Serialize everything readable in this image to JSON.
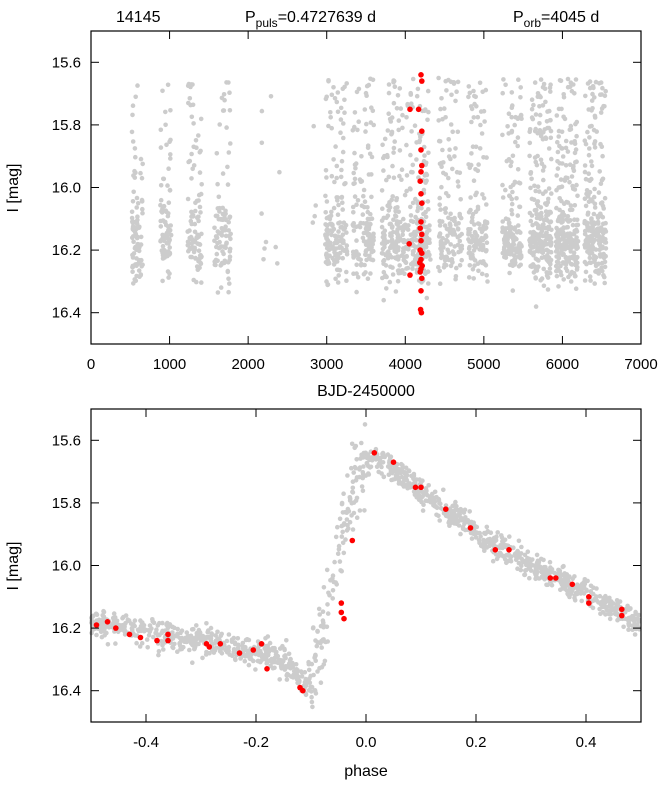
{
  "chart_data": [
    {
      "type": "scatter",
      "title": "",
      "star_id": "14145",
      "annotations": {
        "p_puls_main": "P",
        "p_puls_sub": "puls",
        "p_puls_value": "=0.4727639 d",
        "p_orb_main": "P",
        "p_orb_sub": "orb",
        "p_orb_value": "=4045 d"
      },
      "xlabel": "BJD-2450000",
      "ylabel": "I [mag]",
      "xlim": [
        0,
        7000
      ],
      "ylim": [
        16.5,
        15.5
      ],
      "y_inverted": true,
      "x_ticks": [
        0,
        1000,
        2000,
        3000,
        4000,
        5000,
        6000,
        7000
      ],
      "x_tick_labels": [
        "0",
        "1000",
        "2000",
        "3000",
        "4000",
        "5000",
        "6000",
        "7000"
      ],
      "y_ticks": [
        15.6,
        15.8,
        16.0,
        16.2,
        16.4
      ],
      "y_tick_labels": [
        "15.6",
        "15.8",
        "16.0",
        "16.2",
        "16.4"
      ],
      "grid": false,
      "colors": {
        "background_points": "#cccccc",
        "highlight_points": "#ff0000"
      },
      "series": [
        {
          "role": "all-observations",
          "seasons": [
            {
              "x": [
                520,
                660
              ],
              "n": 90
            },
            {
              "x": [
                880,
                1020
              ],
              "n": 80
            },
            {
              "x": [
                1230,
                1410
              ],
              "n": 100
            },
            {
              "x": [
                1570,
                1780
              ],
              "n": 90
            },
            {
              "x": [
                2170,
                2230
              ],
              "n": 6
            },
            {
              "x": [
                2290,
                2400
              ],
              "n": 4
            },
            {
              "x": [
                2820,
                2880
              ],
              "n": 4
            },
            {
              "x": [
                2980,
                3260
              ],
              "n": 160
            },
            {
              "x": [
                3330,
                3600
              ],
              "n": 140
            },
            {
              "x": [
                3700,
                4040
              ],
              "n": 200
            },
            {
              "x": [
                4060,
                4320
              ],
              "n": 170
            },
            {
              "x": [
                4420,
                4720
              ],
              "n": 140
            },
            {
              "x": [
                4800,
                5050
              ],
              "n": 130
            },
            {
              "x": [
                5230,
                5480
              ],
              "n": 150
            },
            {
              "x": [
                5580,
                5860
              ],
              "n": 240
            },
            {
              "x": [
                5920,
                6200
              ],
              "n": 240
            },
            {
              "x": [
                6280,
                6560
              ],
              "n": 220
            }
          ]
        },
        {
          "role": "highlighted-season",
          "points": [
            {
              "x": 4200,
              "y": 15.64
            },
            {
              "x": 4210,
              "y": 15.66
            },
            {
              "x": 4060,
              "y": 15.75
            },
            {
              "x": 4170,
              "y": 15.75
            },
            {
              "x": 4210,
              "y": 15.82
            },
            {
              "x": 4200,
              "y": 15.88
            },
            {
              "x": 4210,
              "y": 15.93
            },
            {
              "x": 4200,
              "y": 15.95
            },
            {
              "x": 4190,
              "y": 15.98
            },
            {
              "x": 4200,
              "y": 16.02
            },
            {
              "x": 4210,
              "y": 16.05
            },
            {
              "x": 4200,
              "y": 16.11
            },
            {
              "x": 4190,
              "y": 16.13
            },
            {
              "x": 4210,
              "y": 16.15
            },
            {
              "x": 4200,
              "y": 16.17
            },
            {
              "x": 4050,
              "y": 16.18
            },
            {
              "x": 4190,
              "y": 16.2
            },
            {
              "x": 4210,
              "y": 16.21
            },
            {
              "x": 4200,
              "y": 16.23
            },
            {
              "x": 4185,
              "y": 16.24
            },
            {
              "x": 4215,
              "y": 16.25
            },
            {
              "x": 4200,
              "y": 16.26
            },
            {
              "x": 4190,
              "y": 16.27
            },
            {
              "x": 4060,
              "y": 16.28
            },
            {
              "x": 4210,
              "y": 16.29
            },
            {
              "x": 4200,
              "y": 16.33
            },
            {
              "x": 4195,
              "y": 16.39
            },
            {
              "x": 4205,
              "y": 16.4
            }
          ]
        }
      ]
    },
    {
      "type": "scatter",
      "title": "",
      "xlabel": "phase",
      "ylabel": "I [mag]",
      "xlim": [
        -0.5,
        0.5
      ],
      "ylim": [
        16.5,
        15.5
      ],
      "y_inverted": true,
      "x_ticks": [
        -0.4,
        -0.2,
        0.0,
        0.2,
        0.4
      ],
      "x_tick_labels": [
        "-0.4",
        "-0.2",
        "0.0",
        "0.2",
        "0.4"
      ],
      "y_ticks": [
        15.6,
        15.8,
        16.0,
        16.2,
        16.4
      ],
      "y_tick_labels": [
        "15.6",
        "15.8",
        "16.0",
        "16.2",
        "16.4"
      ],
      "grid": false,
      "colors": {
        "background_points": "#cccccc",
        "highlight_points": "#ff0000"
      },
      "series": [
        {
          "role": "all-observations-phased",
          "light_curve": [
            {
              "x": -0.5,
              "y": 16.18
            },
            {
              "x": -0.3,
              "y": 16.24
            },
            {
              "x": -0.15,
              "y": 16.3
            },
            {
              "x": -0.11,
              "y": 16.38
            },
            {
              "x": -0.08,
              "y": 16.24
            },
            {
              "x": -0.05,
              "y": 15.95
            },
            {
              "x": -0.02,
              "y": 15.72
            },
            {
              "x": 0.0,
              "y": 15.66
            },
            {
              "x": 0.02,
              "y": 15.65
            },
            {
              "x": 0.1,
              "y": 15.76
            },
            {
              "x": 0.2,
              "y": 15.9
            },
            {
              "x": 0.3,
              "y": 16.0
            },
            {
              "x": 0.4,
              "y": 16.09
            },
            {
              "x": 0.5,
              "y": 16.19
            }
          ],
          "n": 1400,
          "scatter_mag": 0.035
        },
        {
          "role": "highlighted-season-phased",
          "points": [
            {
              "x": -0.49,
              "y": 16.19
            },
            {
              "x": -0.47,
              "y": 16.18
            },
            {
              "x": -0.455,
              "y": 16.2
            },
            {
              "x": -0.43,
              "y": 16.22
            },
            {
              "x": -0.41,
              "y": 16.23
            },
            {
              "x": -0.38,
              "y": 16.24
            },
            {
              "x": -0.36,
              "y": 16.22
            },
            {
              "x": -0.36,
              "y": 16.24
            },
            {
              "x": -0.29,
              "y": 16.25
            },
            {
              "x": -0.285,
              "y": 16.26
            },
            {
              "x": -0.265,
              "y": 16.25
            },
            {
              "x": -0.23,
              "y": 16.28
            },
            {
              "x": -0.205,
              "y": 16.27
            },
            {
              "x": -0.19,
              "y": 16.25
            },
            {
              "x": -0.18,
              "y": 16.33
            },
            {
              "x": -0.12,
              "y": 16.39
            },
            {
              "x": -0.115,
              "y": 16.4
            },
            {
              "x": -0.045,
              "y": 16.12
            },
            {
              "x": -0.045,
              "y": 16.15
            },
            {
              "x": -0.04,
              "y": 16.17
            },
            {
              "x": -0.025,
              "y": 15.92
            },
            {
              "x": 0.015,
              "y": 15.64
            },
            {
              "x": 0.05,
              "y": 15.67
            },
            {
              "x": 0.09,
              "y": 15.75
            },
            {
              "x": 0.1,
              "y": 15.75
            },
            {
              "x": 0.145,
              "y": 15.82
            },
            {
              "x": 0.19,
              "y": 15.88
            },
            {
              "x": 0.235,
              "y": 15.95
            },
            {
              "x": 0.26,
              "y": 15.95
            },
            {
              "x": 0.335,
              "y": 16.04
            },
            {
              "x": 0.345,
              "y": 16.04
            },
            {
              "x": 0.375,
              "y": 16.06
            },
            {
              "x": 0.405,
              "y": 16.1
            },
            {
              "x": 0.405,
              "y": 16.12
            },
            {
              "x": 0.465,
              "y": 16.14
            },
            {
              "x": 0.465,
              "y": 16.16
            }
          ]
        }
      ]
    }
  ]
}
